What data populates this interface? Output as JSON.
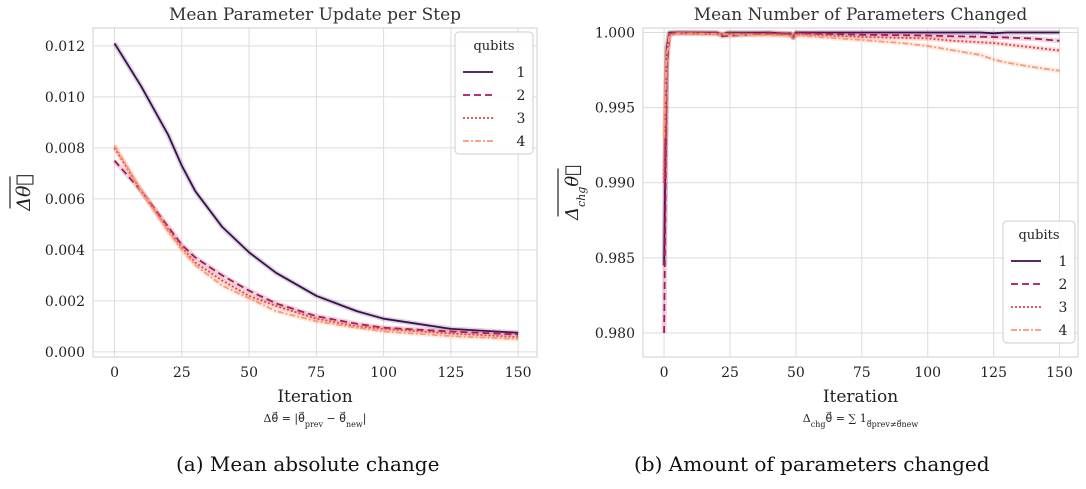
{
  "figure": {
    "caption_a": "(a) Mean absolute change",
    "caption_b": "(b) Amount of parameters changed"
  },
  "colors": {
    "q1": "#3b0f4f",
    "q2": "#a3195b",
    "q3": "#e83f3f",
    "q4": "#f89b73"
  },
  "chart_data": [
    {
      "type": "line",
      "title": "Mean Parameter Update per Step",
      "xlabel": "Iteration",
      "ylabel": "Δθ⃗ (mean)",
      "formula_main": "Δθ⃗ = |θ⃗",
      "formula_sub1": "prev",
      "formula_mid": " − θ⃗",
      "formula_sub2": "new",
      "formula_end": "|",
      "xlim": [
        -8,
        157
      ],
      "ylim": [
        -0.0002,
        0.0127
      ],
      "xticks": [
        "0",
        "25",
        "50",
        "75",
        "100",
        "125",
        "150"
      ],
      "xtick_values": [
        0,
        25,
        50,
        75,
        100,
        125,
        150
      ],
      "yticks": [
        "0.000",
        "0.002",
        "0.004",
        "0.006",
        "0.008",
        "0.010",
        "0.012"
      ],
      "ytick_values": [
        0,
        0.002,
        0.004,
        0.006,
        0.008,
        0.01,
        0.012
      ],
      "legend_title": "qubits",
      "legend_position": "top-right",
      "series": [
        {
          "name": "1",
          "x": [
            0,
            10,
            20,
            25,
            30,
            40,
            50,
            60,
            75,
            90,
            100,
            125,
            150
          ],
          "values": [
            0.0121,
            0.0104,
            0.0085,
            0.0073,
            0.0063,
            0.0049,
            0.0039,
            0.0031,
            0.0022,
            0.0016,
            0.0013,
            0.0009,
            0.00075
          ]
        },
        {
          "name": "2",
          "x": [
            0,
            10,
            20,
            25,
            30,
            40,
            50,
            60,
            75,
            90,
            100,
            125,
            150
          ],
          "values": [
            0.0075,
            0.0063,
            0.0049,
            0.0042,
            0.0037,
            0.003,
            0.0024,
            0.0019,
            0.0014,
            0.0011,
            0.00095,
            0.0008,
            0.00068
          ]
        },
        {
          "name": "3",
          "x": [
            0,
            10,
            20,
            25,
            30,
            40,
            50,
            60,
            75,
            90,
            100,
            125,
            150
          ],
          "values": [
            0.008,
            0.0063,
            0.0048,
            0.0041,
            0.0035,
            0.0028,
            0.0022,
            0.0018,
            0.0013,
            0.001,
            0.0009,
            0.00072,
            0.00058
          ]
        },
        {
          "name": "4",
          "x": [
            0,
            10,
            20,
            25,
            30,
            40,
            50,
            60,
            75,
            90,
            100,
            125,
            150
          ],
          "values": [
            0.0081,
            0.0063,
            0.0047,
            0.004,
            0.0034,
            0.0026,
            0.0021,
            0.0016,
            0.0012,
            0.00095,
            0.0008,
            0.00062,
            0.0005
          ]
        }
      ]
    },
    {
      "type": "line",
      "title": "Mean Number of Parameters Changed",
      "xlabel": "Iteration",
      "ylabel": "Δchgθ⃗ (mean)",
      "formula_main": "Δ",
      "formula_sub1": "chg",
      "formula_mid": "θ⃗ = ∑ 1",
      "formula_sub2": "θ⃗prev≠θ⃗new",
      "formula_end": "",
      "xlim": [
        -8,
        157
      ],
      "ylim": [
        0.9784,
        1.0003
      ],
      "xticks": [
        "0",
        "25",
        "50",
        "75",
        "100",
        "125",
        "150"
      ],
      "xtick_values": [
        0,
        25,
        50,
        75,
        100,
        125,
        150
      ],
      "yticks": [
        "0.980",
        "0.985",
        "0.990",
        "0.995",
        "1.000"
      ],
      "ytick_values": [
        0.98,
        0.985,
        0.99,
        0.995,
        1.0
      ],
      "legend_title": "qubits",
      "legend_position": "lower-right",
      "series": [
        {
          "name": "1",
          "x": [
            0,
            1,
            2,
            5,
            20,
            22,
            24,
            40,
            48,
            49,
            50,
            60,
            100,
            120,
            125,
            130,
            150
          ],
          "values": [
            0.9845,
            0.999,
            1.0,
            1.0,
            1.0,
            0.99985,
            1.0,
            1.0,
            0.9999,
            0.9997,
            1.0,
            1.0,
            1.0,
            1.0,
            0.99995,
            1.0,
            1.0
          ]
        },
        {
          "name": "2",
          "x": [
            0,
            1,
            2,
            5,
            20,
            22,
            40,
            48,
            49,
            50,
            75,
            100,
            110,
            125,
            140,
            150
          ],
          "values": [
            0.98,
            0.9975,
            0.9999,
            1.0,
            0.99995,
            0.99975,
            0.99995,
            0.99995,
            0.99965,
            0.99995,
            0.99985,
            0.9998,
            0.99975,
            0.9997,
            0.9996,
            0.99945
          ]
        },
        {
          "name": "3",
          "x": [
            0,
            1,
            2,
            5,
            20,
            40,
            48,
            49,
            50,
            75,
            100,
            110,
            125,
            140,
            150
          ],
          "values": [
            0.99,
            0.9985,
            0.9999,
            0.99995,
            0.9999,
            0.9999,
            0.9998,
            0.99965,
            0.9999,
            0.9997,
            0.9996,
            0.99945,
            0.9993,
            0.999,
            0.9988
          ]
        },
        {
          "name": "4",
          "x": [
            0,
            1,
            2,
            5,
            20,
            40,
            50,
            75,
            90,
            100,
            110,
            120,
            125,
            130,
            140,
            150
          ],
          "values": [
            0.993,
            0.9985,
            0.9998,
            0.99995,
            0.9999,
            0.9998,
            0.9998,
            0.9995,
            0.9993,
            0.9991,
            0.9988,
            0.9985,
            0.9982,
            0.998,
            0.9977,
            0.99745
          ]
        }
      ]
    }
  ]
}
